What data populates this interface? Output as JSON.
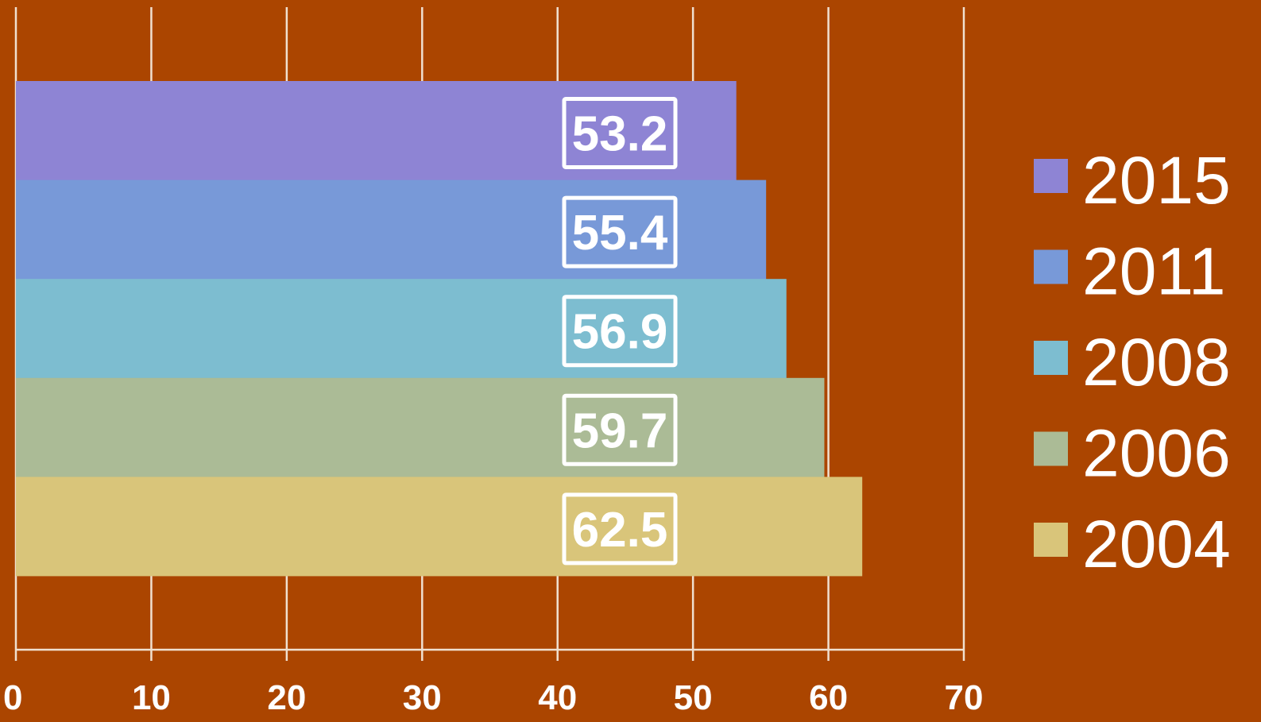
{
  "chart_data": {
    "type": "bar",
    "orientation": "horizontal",
    "title": "",
    "xlabel": "",
    "ylabel": "",
    "xlim": [
      0,
      70
    ],
    "x_ticks": [
      "0",
      "10",
      "20",
      "30",
      "40",
      "50",
      "60",
      "70"
    ],
    "grid": "vertical",
    "legend_position": "right",
    "data_labels": true,
    "series": [
      {
        "name": "2015",
        "value": 53.2,
        "label": "53.2",
        "color": "#8e84d4"
      },
      {
        "name": "2011",
        "value": 55.4,
        "label": "55.4",
        "color": "#7899d8"
      },
      {
        "name": "2008",
        "value": 56.9,
        "label": "56.9",
        "color": "#7dbdd0"
      },
      {
        "name": "2006",
        "value": 59.7,
        "label": "59.7",
        "color": "#abbb96"
      },
      {
        "name": "2004",
        "value": 62.5,
        "label": "62.5",
        "color": "#d9c57a"
      }
    ],
    "colors": {
      "background": "#ab4500",
      "grid": "#f0e0d0",
      "text": "#ffffff"
    }
  }
}
